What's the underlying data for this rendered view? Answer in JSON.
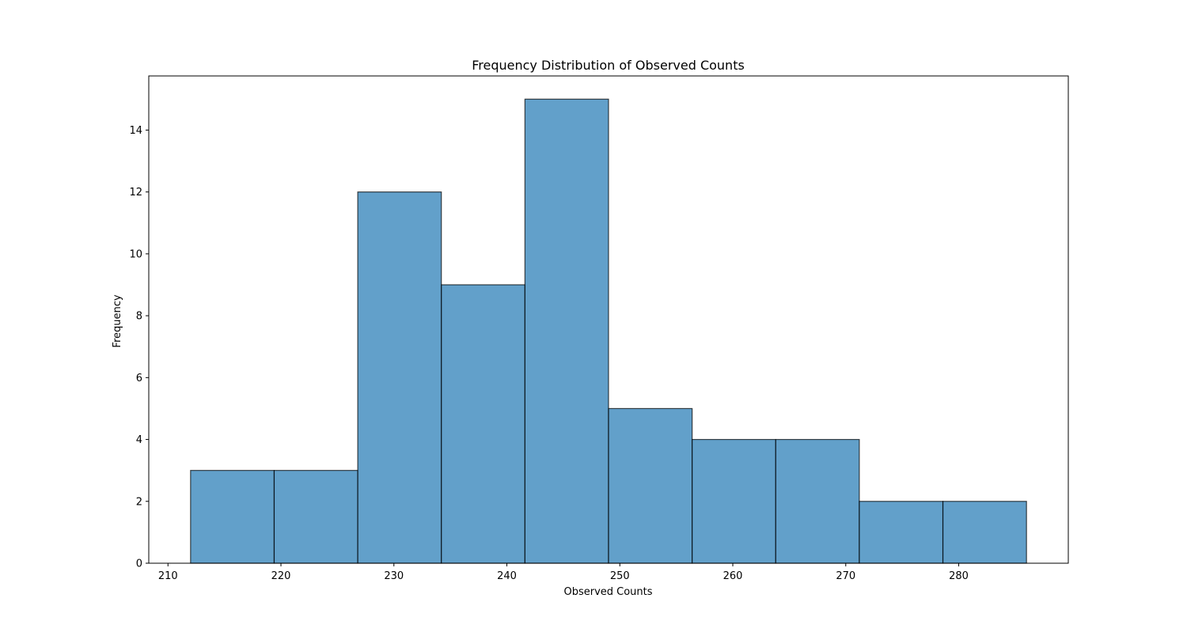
{
  "chart_data": {
    "type": "bar",
    "title": "Frequency Distribution of Observed Counts",
    "xlabel": "Observed Counts",
    "ylabel": "Frequency",
    "bin_edges": [
      212.0,
      219.4,
      226.8,
      234.2,
      241.6,
      249.0,
      256.4,
      263.8,
      271.2,
      278.6,
      286.0
    ],
    "values": [
      3,
      3,
      12,
      9,
      15,
      5,
      4,
      4,
      2,
      2
    ],
    "xlim": [
      208.3,
      289.7
    ],
    "ylim": [
      0,
      15.75
    ],
    "xticks": [
      210,
      220,
      230,
      240,
      250,
      260,
      270,
      280
    ],
    "yticks": [
      0,
      2,
      4,
      6,
      8,
      10,
      12,
      14
    ],
    "grid": false,
    "bar_color": "#1f77b4",
    "bar_alpha": 0.7,
    "edge_color": "#000000"
  }
}
